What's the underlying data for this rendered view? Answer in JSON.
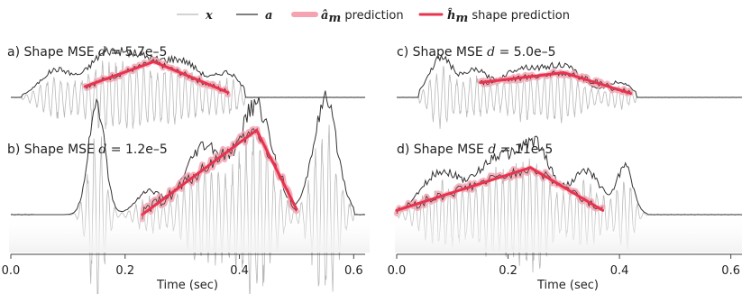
{
  "legend": {
    "x_label": "x",
    "a_label": "a",
    "am_symbol": "â",
    "am_sub": "m",
    "am_text": " prediction",
    "hm_symbol": "ĥ",
    "hm_sub": "m",
    "hm_text": " shape prediction"
  },
  "colors": {
    "x": "#b8b8b8",
    "a": "#333333",
    "am_prediction": "#f5a3b0",
    "hm_prediction": "#e8334f"
  },
  "chart_data": [
    {
      "id": "a",
      "type": "line",
      "title": "a) Shape MSE d = 5.7e–5",
      "title_parts": {
        "prefix": "a) Shape MSE ",
        "var": "d",
        "suffix": " = 5.7e–5"
      },
      "envelope": {
        "start": 0.02,
        "end": 0.41,
        "tail": 0.62
      },
      "bursts": [
        [
          0.08,
          0.04,
          0.55
        ],
        [
          0.16,
          0.04,
          0.7
        ],
        [
          0.22,
          0.05,
          0.75
        ],
        [
          0.3,
          0.05,
          0.7
        ],
        [
          0.38,
          0.03,
          0.45
        ]
      ],
      "prediction_range": [
        0.13,
        0.38
      ],
      "shape_prediction": {
        "x": [
          0.13,
          0.25,
          0.38
        ],
        "y": [
          0.22,
          0.72,
          0.1
        ]
      }
    },
    {
      "id": "b",
      "type": "line",
      "title": "b) Shape MSE d = 1.2e–5",
      "title_parts": {
        "prefix": "b) Shape MSE ",
        "var": "d",
        "suffix": " = 1.2e–5"
      },
      "envelope": {
        "start": 0.04,
        "end": 0.6,
        "tail": 0.62
      },
      "bursts": [
        [
          0.15,
          0.02,
          1.0
        ],
        [
          0.24,
          0.03,
          0.2
        ],
        [
          0.34,
          0.05,
          0.6
        ],
        [
          0.43,
          0.04,
          0.95
        ],
        [
          0.55,
          0.03,
          1.0
        ]
      ],
      "prediction_range": [
        0.23,
        0.5
      ],
      "shape_prediction": {
        "x": [
          0.23,
          0.43,
          0.5
        ],
        "y": [
          0.0,
          0.75,
          0.05
        ]
      }
    },
    {
      "id": "c",
      "type": "line",
      "title": "c) Shape MSE d = 5.0e–5",
      "title_parts": {
        "prefix": "c) Shape MSE ",
        "var": "d",
        "suffix": " = 5.0e–5"
      },
      "envelope": {
        "start": 0.04,
        "end": 0.43,
        "tail": 0.62
      },
      "bursts": [
        [
          0.08,
          0.03,
          0.8
        ],
        [
          0.14,
          0.03,
          0.5
        ],
        [
          0.22,
          0.05,
          0.55
        ],
        [
          0.3,
          0.05,
          0.6
        ],
        [
          0.4,
          0.03,
          0.3
        ]
      ],
      "prediction_range": [
        0.15,
        0.42
      ],
      "shape_prediction": {
        "x": [
          0.15,
          0.3,
          0.42
        ],
        "y": [
          0.3,
          0.5,
          0.08
        ]
      }
    },
    {
      "id": "d",
      "type": "line",
      "title": "d) Shape MSE d = 11e–5",
      "title_parts": {
        "prefix": "d) Shape MSE ",
        "var": "d",
        "suffix": " = 11e–5"
      },
      "envelope": {
        "start": 0.0,
        "end": 0.45,
        "tail": 0.62
      },
      "bursts": [
        [
          0.08,
          0.05,
          0.5
        ],
        [
          0.18,
          0.05,
          0.65
        ],
        [
          0.25,
          0.04,
          0.75
        ],
        [
          0.34,
          0.04,
          0.5
        ],
        [
          0.41,
          0.02,
          0.55
        ]
      ],
      "prediction_range": [
        0.0,
        0.37
      ],
      "shape_prediction": {
        "x": [
          0.0,
          0.24,
          0.37
        ],
        "y": [
          0.05,
          0.55,
          0.05
        ]
      }
    }
  ],
  "axes": {
    "xlabel": "Time (sec)",
    "xlim": [
      0.0,
      0.62
    ],
    "xticks": [
      "0.0",
      "0.2",
      "0.4",
      "0.6"
    ],
    "xtick_values": [
      0.0,
      0.2,
      0.4,
      0.6
    ]
  }
}
